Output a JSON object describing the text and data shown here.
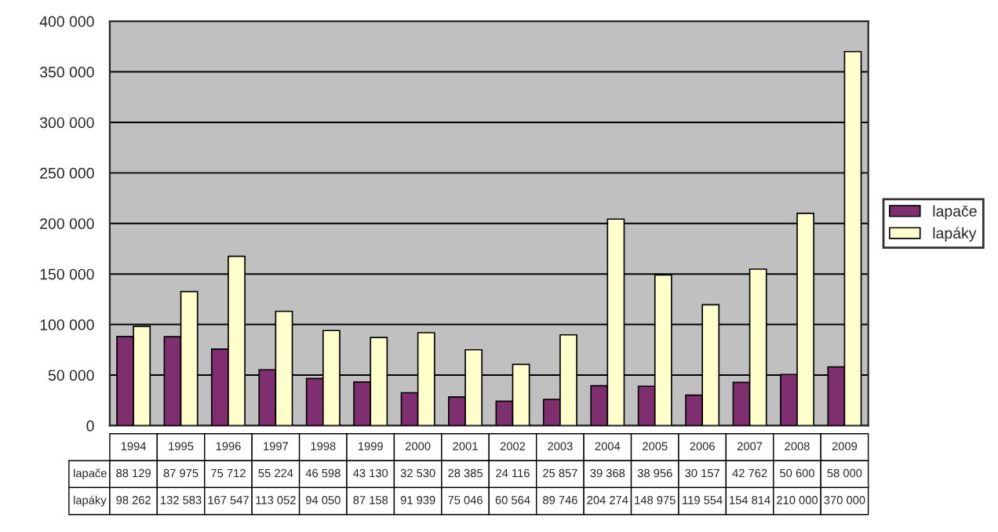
{
  "chart_data": {
    "type": "bar",
    "categories": [
      "1994",
      "1995",
      "1996",
      "1997",
      "1998",
      "1999",
      "2000",
      "2001",
      "2002",
      "2003",
      "2004",
      "2005",
      "2006",
      "2007",
      "2008",
      "2009"
    ],
    "series": [
      {
        "name": "lapače",
        "color": "#7f2f6f",
        "values": [
          88129,
          87975,
          75712,
          55224,
          46598,
          43130,
          32530,
          28385,
          24116,
          25857,
          39368,
          38956,
          30157,
          42762,
          50600,
          58000
        ],
        "value_labels": [
          "88 129",
          "87 975",
          "75 712",
          "55 224",
          "46 598",
          "43 130",
          "32 530",
          "28 385",
          "24 116",
          "25 857",
          "39 368",
          "38 956",
          "30 157",
          "42 762",
          "50 600",
          "58 000"
        ]
      },
      {
        "name": "lapáky",
        "color": "#ffffcc",
        "values": [
          98262,
          132583,
          167547,
          113052,
          94050,
          87158,
          91939,
          75046,
          60564,
          89746,
          204274,
          148975,
          119554,
          154814,
          210000,
          370000
        ],
        "value_labels": [
          "98 262",
          "132 583",
          "167 547",
          "113 052",
          "94 050",
          "87 158",
          "91 939",
          "75 046",
          "60 564",
          "89 746",
          "204 274",
          "148 975",
          "119 554",
          "154 814",
          "210 000",
          "370 000"
        ]
      }
    ],
    "ylim": [
      0,
      400000
    ],
    "yticks": [
      0,
      {
        "value": 50000,
        "label": "50 000"
      },
      {
        "value": 100000,
        "label": "100 000"
      },
      {
        "value": 150000,
        "label": "150 000"
      },
      {
        "value": 200000,
        "label": "200 000"
      },
      {
        "value": 250000,
        "label": "250 000"
      },
      {
        "value": 300000,
        "label": "300 000"
      },
      {
        "value": 350000,
        "label": "350 000"
      },
      {
        "value": 400000,
        "label": "400 000"
      }
    ],
    "grid": "y",
    "legend": "right"
  }
}
